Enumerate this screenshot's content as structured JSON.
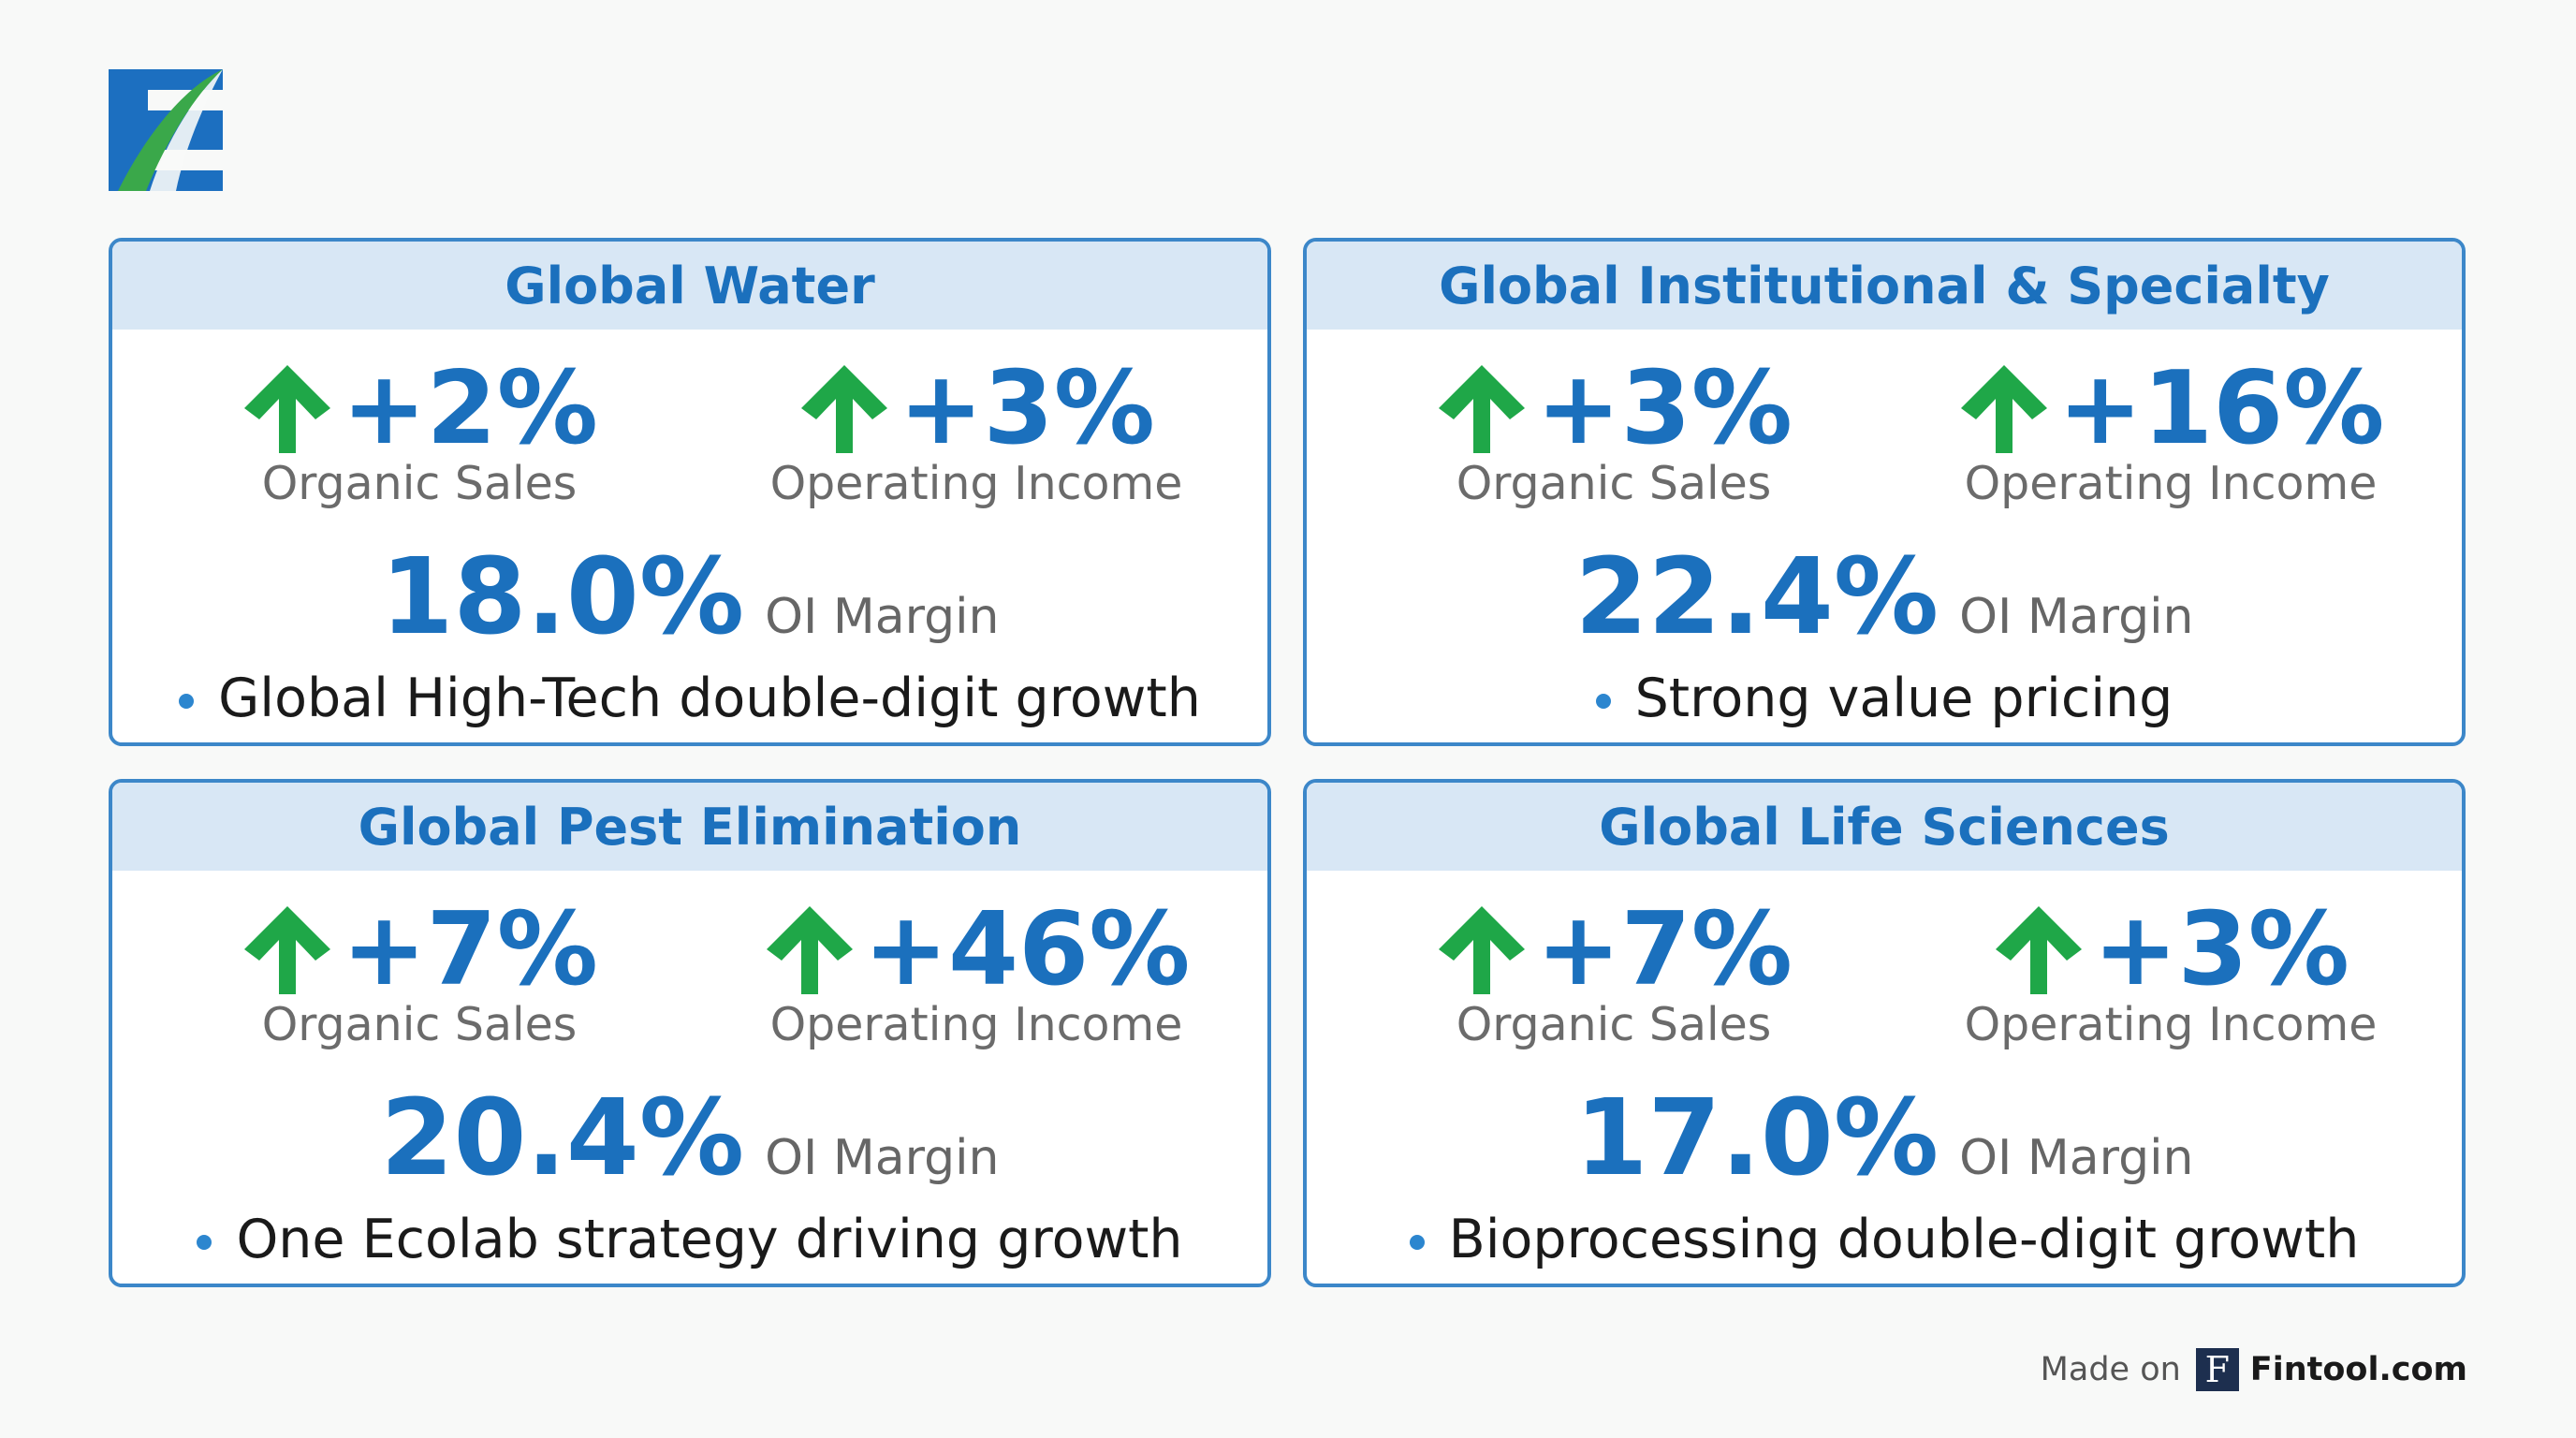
{
  "segments": [
    {
      "title": "Global Water",
      "metrics": [
        {
          "value": "+2%",
          "label": "Organic Sales"
        },
        {
          "value": "+3%",
          "label": "Operating Income"
        }
      ],
      "margin": {
        "value": "18.0%",
        "label": "OI Margin"
      },
      "bullet": "Global High-Tech double-digit growth"
    },
    {
      "title": "Global Institutional & Specialty",
      "metrics": [
        {
          "value": "+3%",
          "label": "Organic Sales"
        },
        {
          "value": "+16%",
          "label": "Operating Income"
        }
      ],
      "margin": {
        "value": "22.4%",
        "label": "OI Margin"
      },
      "bullet": "Strong value pricing"
    },
    {
      "title": "Global Pest Elimination",
      "metrics": [
        {
          "value": "+7%",
          "label": "Organic Sales"
        },
        {
          "value": "+46%",
          "label": "Operating Income"
        }
      ],
      "margin": {
        "value": "20.4%",
        "label": "OI Margin"
      },
      "bullet": "One Ecolab strategy driving growth"
    },
    {
      "title": "Global Life Sciences",
      "metrics": [
        {
          "value": "+7%",
          "label": "Organic Sales"
        },
        {
          "value": "+3%",
          "label": "Operating Income"
        }
      ],
      "margin": {
        "value": "17.0%",
        "label": "OI Margin"
      },
      "bullet": "Bioprocessing double-digit growth"
    }
  ],
  "footer": {
    "prefix": "Made on",
    "logo_letter": "F",
    "brand": "Fintool.com"
  }
}
